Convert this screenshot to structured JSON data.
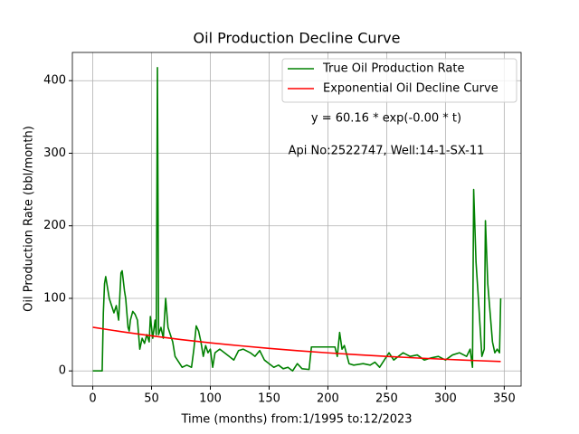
{
  "chart_data": {
    "type": "line",
    "title": "Oil Production Decline Curve",
    "x_label": "Time (months) from:1/1995 to:12/2023",
    "y_label": "Oil Production Rate (bbl/month)",
    "annotations": [
      "y = 60.16 * exp(-0.00 * t)",
      "Api No:2522747, Well:14-1-SX-11"
    ],
    "xlim": [
      -17.35,
      364.35
    ],
    "ylim": [
      -20.9,
      438.9
    ],
    "xticks": [
      0,
      50,
      100,
      150,
      200,
      250,
      300,
      350
    ],
    "yticks": [
      0,
      100,
      200,
      300,
      400
    ],
    "grid": true,
    "legend": "upper right",
    "series": [
      {
        "name": "True Oil Production Rate",
        "color": "#008000",
        "x": [
          0,
          7,
          8,
          9,
          10,
          11,
          14,
          16,
          18,
          20,
          22,
          24,
          25,
          27,
          28,
          30,
          31,
          32,
          34,
          36,
          38,
          39,
          40,
          42,
          44,
          46,
          48,
          49,
          51,
          53,
          54,
          55,
          56,
          58,
          60,
          62,
          64,
          66,
          68,
          70,
          74,
          76,
          80,
          84,
          86,
          88,
          90,
          92,
          94,
          96,
          98,
          100,
          102,
          104,
          108,
          112,
          116,
          120,
          124,
          128,
          134,
          138,
          142,
          146,
          150,
          154,
          158,
          162,
          166,
          170,
          174,
          178,
          184,
          186,
          200,
          206,
          208,
          210,
          212,
          214,
          218,
          222,
          230,
          236,
          240,
          244,
          248,
          252,
          256,
          260,
          264,
          270,
          276,
          282,
          288,
          294,
          300,
          306,
          312,
          318,
          321,
          323,
          324,
          326,
          328,
          331,
          333,
          334,
          336,
          338,
          340,
          342,
          344,
          346,
          347
        ],
        "values": [
          0,
          0,
          0,
          80,
          120,
          130,
          100,
          90,
          80,
          90,
          70,
          135,
          138,
          110,
          100,
          60,
          55,
          70,
          82,
          78,
          70,
          50,
          30,
          45,
          38,
          50,
          40,
          75,
          45,
          70,
          50,
          418,
          50,
          60,
          45,
          100,
          60,
          50,
          40,
          20,
          10,
          5,
          8,
          5,
          30,
          62,
          55,
          40,
          20,
          35,
          25,
          30,
          5,
          25,
          30,
          25,
          20,
          15,
          28,
          30,
          25,
          20,
          28,
          15,
          10,
          5,
          8,
          3,
          5,
          0,
          10,
          3,
          2,
          33,
          33,
          33,
          20,
          53,
          30,
          35,
          10,
          8,
          10,
          8,
          12,
          5,
          15,
          25,
          15,
          20,
          25,
          20,
          22,
          15,
          18,
          20,
          15,
          22,
          25,
          20,
          30,
          5,
          250,
          150,
          100,
          20,
          30,
          207,
          120,
          80,
          40,
          25,
          30,
          25,
          100
        ]
      },
      {
        "name": "Exponential Oil Decline Curve",
        "color": "#ff0000",
        "x": [
          0,
          25,
          50,
          75,
          100,
          125,
          150,
          175,
          200,
          225,
          250,
          275,
          300,
          325,
          347
        ],
        "values": [
          60.2,
          53.9,
          48.3,
          43.2,
          38.7,
          34.7,
          31.0,
          27.8,
          24.9,
          22.3,
          20.0,
          17.9,
          16.0,
          14.3,
          13.0
        ]
      }
    ]
  }
}
